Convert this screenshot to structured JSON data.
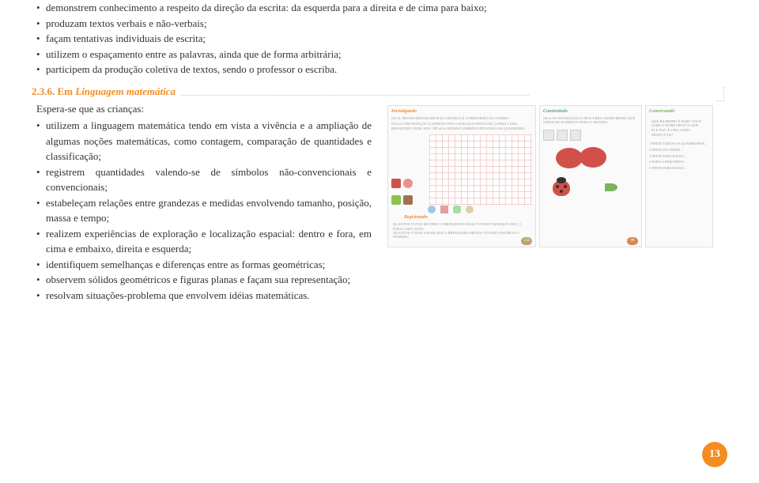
{
  "topBullets": [
    "demonstrem conhecimento a respeito da direção da escrita: da esquerda para a direita e de cima para baixo;",
    "produzam textos verbais e não-verbais;",
    "façam tentativas individuais de escrita;",
    "utilizem o espaçamento entre as palavras, ainda que de forma arbitrária;",
    "participem da produção coletiva de textos, sendo o professor o escriba."
  ],
  "section": {
    "number": "2.3.6.",
    "prefix": "Em",
    "title": "Linguagem matemática"
  },
  "intro": "Espera-se que as crianças:",
  "leftBullets": [
    "utilizem a linguagem matemática tendo em vista a vivência e a ampliação de algumas noções matemáticas, como contagem, comparação de quantidades e classificação;",
    "registrem quantidades valendo-se de símbolos não-convencionais e convencionais;",
    "estabeleçam relações entre grandezas e medidas envolvendo tamanho, posição, massa e tempo;",
    "realizem experiências de exploração e localização espacial: dentro e fora, em cima e embaixo, direita e esquerda;",
    "identifiquem semelhanças e diferenças entre as formas geométricas;"
  ],
  "fullBullets": [
    "observem sólidos geométricos e figuras planas e façam sua representação;",
    "resolvam situações-problema que envolvem idéias matemáticas."
  ],
  "illustration": {
    "leftPanel": {
      "header": "Investigando",
      "text1": "QUAL DESTES BRINQUEDOS DO GRÁFICO É O PREFERIDO DA TURMA?",
      "text2": "OUÇA COM ATENÇÃO A OPINIÃO DOS COLEGAS E PINTE UM ▢ PARA CADA BRINQUEDO INDICADO. DÊ SUA OPINIÃO TAMBÉM PINTANDO UM QUADRINHO.",
      "registrando": "Registrando",
      "footer1": "QUANTOS VOTOS RECEBEU O BRINQUEDO MAIS VOTADO? MARQUE UMA ▢ PARA CADA VOTO.",
      "footer2": "QUANTOS VOTOS A MAIS QUE O BRINQUEDO MENOS VOTADO? ESCREVA O NÚMERO.",
      "pageNum": "134"
    },
    "midPanel": {
      "header": "Construindo",
      "text1": "SIGA AS INSTRUÇÕES E DESCUBRA UM BICHINHO QUE SERVE DE ALIMENTO PARA A ARANHA.",
      "pageNum": ""
    },
    "rightPanel": {
      "header": "Conversando",
      "text1": "QUE BICHINHO É ESSE? VOCÊ SABE O NOME DELE? O QUE ELE FAZ? É UMA COISA MUITO ÚTIL?",
      "listItems": [
        "1 PINTE TODOS OS QUADRINHOS...",
        "2 PINTE DE VERDE...",
        "3 PINTE PARA BAIXO...",
        "4 PARA A ESQUERDA...",
        "5 PINTE PARA BAIXO..."
      ],
      "pageNum": "96"
    }
  },
  "pageNumber": "13",
  "colors": {
    "accent": "#f68b1f",
    "text": "#333333",
    "dotted": "#cccccc"
  }
}
